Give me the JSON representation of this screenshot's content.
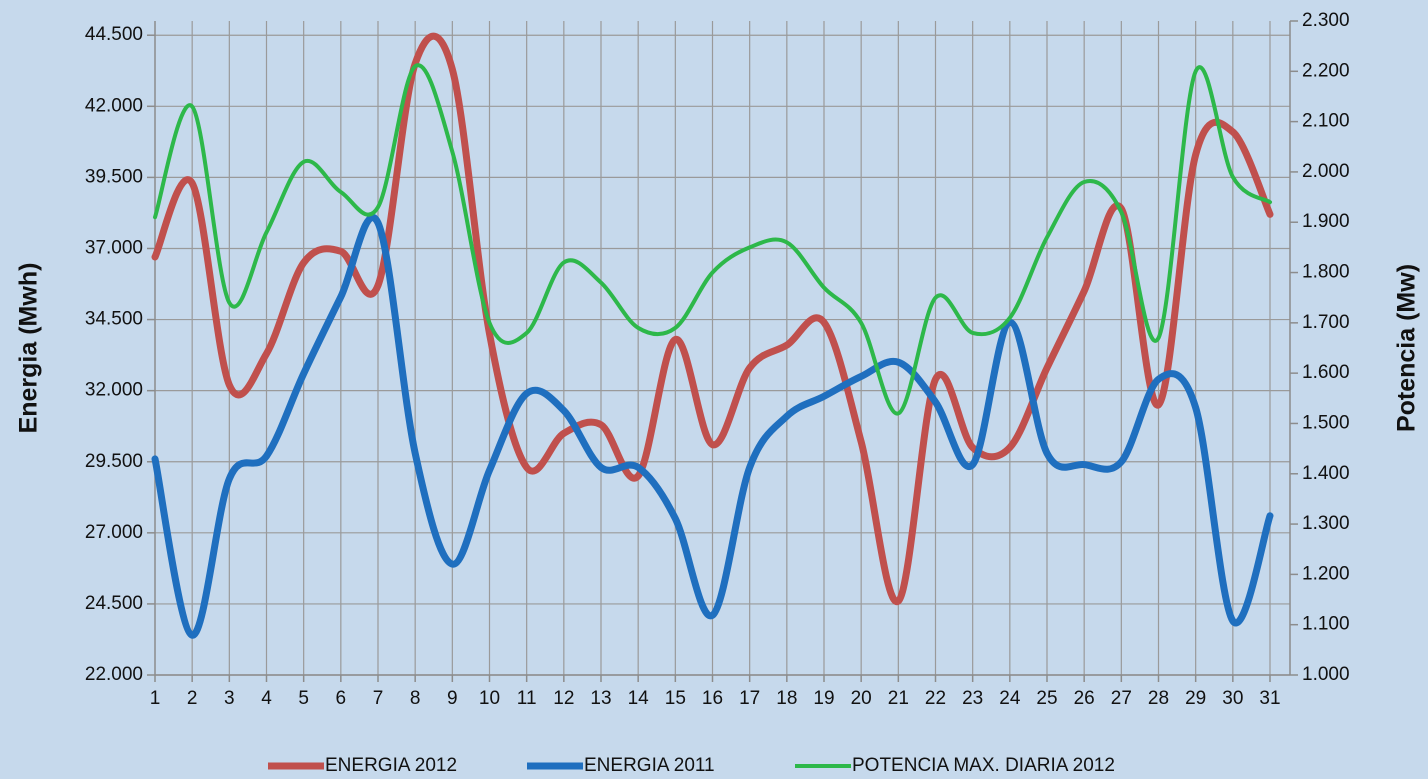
{
  "chart_data": {
    "type": "line",
    "y_label": "Energia (Mwh)",
    "y2_label": "Potencia (Mw)",
    "categories": [
      "1",
      "2",
      "3",
      "4",
      "5",
      "6",
      "7",
      "8",
      "9",
      "10",
      "11",
      "12",
      "13",
      "14",
      "15",
      "16",
      "17",
      "18",
      "19",
      "20",
      "21",
      "22",
      "23",
      "24",
      "25",
      "26",
      "27",
      "28",
      "29",
      "30",
      "31"
    ],
    "series": [
      {
        "name": "ENERGIA 2012",
        "color": "#c0504d",
        "values": [
          36700,
          39300,
          32200,
          33300,
          36500,
          36900,
          35700,
          43500,
          43300,
          34000,
          29300,
          30500,
          30800,
          29000,
          33800,
          30100,
          32800,
          33600,
          34400,
          30200,
          24600,
          32400,
          30000,
          30000,
          32800,
          35500,
          38400,
          31500,
          40300,
          41100,
          38200
        ]
      },
      {
        "name": "ENERGIA 2011",
        "color": "#1f6fbf",
        "values": [
          29600,
          23400,
          28900,
          29700,
          32600,
          35300,
          37900,
          29800,
          25900,
          29200,
          31900,
          31300,
          29300,
          29300,
          27500,
          24100,
          29300,
          31100,
          31800,
          32500,
          33000,
          31600,
          29400,
          34400,
          29800,
          29400,
          29500,
          32400,
          31400,
          23900,
          27600
        ]
      },
      {
        "name": "POTENCIA MAX. DIARIA 2012",
        "color": "#2db84a",
        "axis": "y2",
        "values": [
          1910,
          2130,
          1740,
          1880,
          2020,
          1960,
          1930,
          2210,
          2040,
          1700,
          1680,
          1820,
          1780,
          1690,
          1690,
          1800,
          1850,
          1860,
          1770,
          1700,
          1520,
          1750,
          1680,
          1710,
          1870,
          1980,
          1920,
          1670,
          2200,
          1990,
          1940
        ]
      }
    ],
    "ylim": [
      22000,
      45000
    ],
    "yticks": [
      {
        "value": 22000,
        "label": "22.000"
      },
      {
        "value": 24500,
        "label": "24.500"
      },
      {
        "value": 27000,
        "label": "27.000"
      },
      {
        "value": 29500,
        "label": "29.500"
      },
      {
        "value": 32000,
        "label": "32.000"
      },
      {
        "value": 34500,
        "label": "34.500"
      },
      {
        "value": 37000,
        "label": "37.000"
      },
      {
        "value": 39500,
        "label": "39.500"
      },
      {
        "value": 42000,
        "label": "42.000"
      },
      {
        "value": 44500,
        "label": "44.500"
      }
    ],
    "y2lim": [
      1000,
      2300
    ],
    "y2ticks": [
      {
        "value": 1000,
        "label": "1.000"
      },
      {
        "value": 1100,
        "label": "1.100"
      },
      {
        "value": 1200,
        "label": "1.200"
      },
      {
        "value": 1300,
        "label": "1.300"
      },
      {
        "value": 1400,
        "label": "1.400"
      },
      {
        "value": 1500,
        "label": "1.500"
      },
      {
        "value": 1600,
        "label": "1.600"
      },
      {
        "value": 1700,
        "label": "1.700"
      },
      {
        "value": 1800,
        "label": "1.800"
      },
      {
        "value": 1900,
        "label": "1.900"
      },
      {
        "value": 2000,
        "label": "2.000"
      },
      {
        "value": 2100,
        "label": "2.100"
      },
      {
        "value": 2200,
        "label": "2.200"
      },
      {
        "value": 2300,
        "label": "2.300"
      }
    ],
    "grid": true,
    "legend": "bottom",
    "smooth": true
  }
}
